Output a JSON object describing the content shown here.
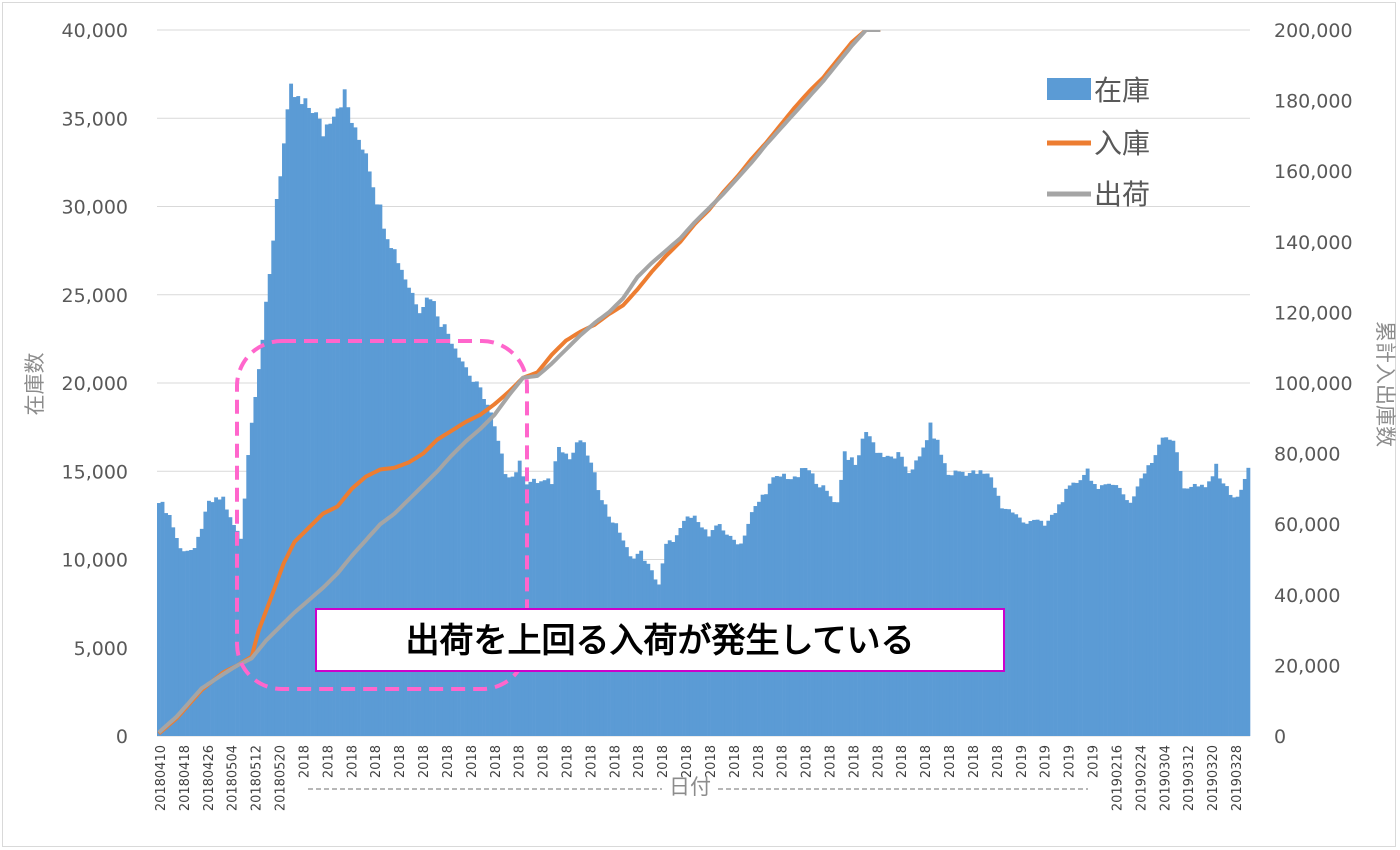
{
  "chart_data": {
    "type": "bar+line",
    "xlabel": "日付",
    "ylabel_left": "在庫数",
    "ylabel_right": "累計入出庫数",
    "ylim_left": [
      0,
      40000
    ],
    "ylim_right": [
      0,
      200000
    ],
    "yticks_left": [
      "0",
      "5,000",
      "10,000",
      "15,000",
      "20,000",
      "25,000",
      "30,000",
      "35,000",
      "40,000"
    ],
    "yticks_right": [
      "0",
      "20,000",
      "40,000",
      "60,000",
      "80,000",
      "100,000",
      "120,000",
      "140,000",
      "160,000",
      "180,000",
      "200,000"
    ],
    "x_tick_labels": [
      "20180410",
      "20180418",
      "20180426",
      "20180504",
      "20180512",
      "20180520",
      "2018",
      "2018",
      "2018",
      "2018",
      "2018",
      "2018",
      "2018",
      "2018",
      "2018",
      "2018",
      "2018",
      "2018",
      "2018",
      "2018",
      "2018",
      "2018",
      "2018",
      "2018",
      "2018",
      "2018",
      "2018",
      "2018",
      "2018",
      "2018",
      "2018",
      "2018",
      "2018",
      "2018",
      "2018",
      "2018",
      "2019",
      "2019",
      "2019",
      "2019",
      "20190216",
      "20190224",
      "20190304",
      "20190312",
      "20190320",
      "20190328"
    ],
    "grid": true,
    "legend_position": "top-right",
    "series": [
      {
        "name": "在庫",
        "kind": "bar",
        "axis": "left",
        "color": "#5b9bd5",
        "keypoints": [
          [
            0,
            13400
          ],
          [
            3,
            12500
          ],
          [
            6,
            10600
          ],
          [
            10,
            10500
          ],
          [
            14,
            13200
          ],
          [
            18,
            13500
          ],
          [
            20,
            12300
          ],
          [
            23,
            11200
          ],
          [
            25,
            16000
          ],
          [
            27,
            19500
          ],
          [
            29,
            22500
          ],
          [
            31,
            26000
          ],
          [
            33,
            30500
          ],
          [
            35,
            33500
          ],
          [
            37,
            36500
          ],
          [
            40,
            35700
          ],
          [
            43,
            35600
          ],
          [
            46,
            34200
          ],
          [
            49,
            35500
          ],
          [
            52,
            36300
          ],
          [
            55,
            34100
          ],
          [
            58,
            33200
          ],
          [
            61,
            30500
          ],
          [
            64,
            28500
          ],
          [
            67,
            27000
          ],
          [
            70,
            25500
          ],
          [
            73,
            24300
          ],
          [
            76,
            25000
          ],
          [
            79,
            23500
          ],
          [
            82,
            22500
          ],
          [
            85,
            21300
          ],
          [
            88,
            20100
          ],
          [
            91,
            19300
          ],
          [
            93,
            18200
          ],
          [
            95,
            16600
          ],
          [
            97,
            15000
          ],
          [
            99,
            14700
          ],
          [
            101,
            15400
          ],
          [
            103,
            14400
          ],
          [
            110,
            14400
          ],
          [
            112,
            16600
          ],
          [
            115,
            15700
          ],
          [
            118,
            16800
          ],
          [
            120,
            16000
          ],
          [
            123,
            14100
          ],
          [
            126,
            12500
          ],
          [
            129,
            11600
          ],
          [
            132,
            10100
          ],
          [
            135,
            10400
          ],
          [
            138,
            9300
          ],
          [
            140,
            8600
          ],
          [
            142,
            10800
          ],
          [
            145,
            11300
          ],
          [
            148,
            12400
          ],
          [
            151,
            12300
          ],
          [
            154,
            11300
          ],
          [
            157,
            12000
          ],
          [
            160,
            11200
          ],
          [
            163,
            10900
          ],
          [
            166,
            12600
          ],
          [
            169,
            13600
          ],
          [
            172,
            14500
          ],
          [
            175,
            14800
          ],
          [
            178,
            14500
          ],
          [
            181,
            15200
          ],
          [
            184,
            14500
          ],
          [
            187,
            13800
          ],
          [
            190,
            13200
          ],
          [
            192,
            16100
          ],
          [
            195,
            15300
          ],
          [
            198,
            17400
          ],
          [
            201,
            16200
          ],
          [
            204,
            15700
          ],
          [
            207,
            15900
          ],
          [
            210,
            15000
          ],
          [
            213,
            15700
          ],
          [
            216,
            17500
          ],
          [
            218,
            16600
          ],
          [
            221,
            14800
          ],
          [
            224,
            15000
          ],
          [
            227,
            14900
          ],
          [
            230,
            14900
          ],
          [
            233,
            14700
          ],
          [
            236,
            13000
          ],
          [
            239,
            12700
          ],
          [
            242,
            12100
          ],
          [
            245,
            12300
          ],
          [
            248,
            11900
          ],
          [
            251,
            12700
          ],
          [
            254,
            13800
          ],
          [
            257,
            14400
          ],
          [
            260,
            15100
          ],
          [
            263,
            13800
          ],
          [
            266,
            14500
          ],
          [
            269,
            14000
          ],
          [
            272,
            13200
          ],
          [
            275,
            14600
          ],
          [
            278,
            15500
          ],
          [
            281,
            17100
          ],
          [
            284,
            16800
          ],
          [
            287,
            14100
          ],
          [
            290,
            14200
          ],
          [
            293,
            14000
          ],
          [
            296,
            15200
          ],
          [
            299,
            14000
          ],
          [
            302,
            13400
          ],
          [
            305,
            15100
          ]
        ]
      },
      {
        "name": "入庫",
        "kind": "line",
        "axis": "right",
        "color": "#ed7d31",
        "keypoints": [
          [
            0,
            700
          ],
          [
            5,
            5000
          ],
          [
            12,
            13000
          ],
          [
            18,
            18000
          ],
          [
            22,
            20000
          ],
          [
            26,
            22500
          ],
          [
            28,
            30000
          ],
          [
            31,
            38000
          ],
          [
            35,
            49000
          ],
          [
            38,
            55000
          ],
          [
            42,
            59000
          ],
          [
            46,
            63000
          ],
          [
            50,
            65000
          ],
          [
            54,
            70000
          ],
          [
            58,
            73500
          ],
          [
            62,
            75500
          ],
          [
            66,
            76000
          ],
          [
            70,
            77500
          ],
          [
            74,
            80000
          ],
          [
            78,
            84000
          ],
          [
            82,
            86500
          ],
          [
            86,
            89000
          ],
          [
            90,
            91000
          ],
          [
            94,
            94000
          ],
          [
            98,
            97500
          ],
          [
            102,
            101500
          ],
          [
            106,
            103000
          ],
          [
            110,
            108000
          ],
          [
            114,
            112000
          ],
          [
            118,
            114500
          ],
          [
            122,
            116500
          ],
          [
            126,
            119500
          ],
          [
            130,
            122000
          ],
          [
            134,
            126500
          ],
          [
            138,
            131500
          ],
          [
            142,
            136000
          ],
          [
            146,
            140000
          ],
          [
            150,
            145000
          ],
          [
            154,
            149000
          ],
          [
            158,
            154000
          ],
          [
            162,
            158500
          ],
          [
            166,
            163500
          ],
          [
            170,
            168000
          ],
          [
            174,
            173000
          ],
          [
            178,
            178000
          ],
          [
            182,
            182500
          ],
          [
            186,
            186500
          ],
          [
            190,
            191500
          ],
          [
            194,
            196500
          ],
          [
            198,
            200000
          ],
          [
            202,
            206000
          ]
        ]
      },
      {
        "name": "出荷",
        "kind": "line",
        "axis": "right",
        "color": "#a5a5a5",
        "keypoints": [
          [
            0,
            1000
          ],
          [
            5,
            5500
          ],
          [
            12,
            13500
          ],
          [
            18,
            17500
          ],
          [
            22,
            20000
          ],
          [
            26,
            22000
          ],
          [
            30,
            27000
          ],
          [
            34,
            31000
          ],
          [
            38,
            35000
          ],
          [
            42,
            38500
          ],
          [
            46,
            42000
          ],
          [
            50,
            46000
          ],
          [
            54,
            51000
          ],
          [
            58,
            55500
          ],
          [
            62,
            60000
          ],
          [
            66,
            63000
          ],
          [
            70,
            67000
          ],
          [
            74,
            71000
          ],
          [
            78,
            75000
          ],
          [
            82,
            79500
          ],
          [
            86,
            83500
          ],
          [
            90,
            87000
          ],
          [
            94,
            91000
          ],
          [
            98,
            96500
          ],
          [
            102,
            101500
          ],
          [
            106,
            102000
          ],
          [
            110,
            105500
          ],
          [
            114,
            109500
          ],
          [
            118,
            113500
          ],
          [
            122,
            117000
          ],
          [
            126,
            120000
          ],
          [
            130,
            124000
          ],
          [
            134,
            130000
          ],
          [
            138,
            134000
          ],
          [
            142,
            137500
          ],
          [
            146,
            141000
          ],
          [
            150,
            145500
          ],
          [
            154,
            149500
          ],
          [
            158,
            153500
          ],
          [
            162,
            158000
          ],
          [
            166,
            162500
          ],
          [
            170,
            167500
          ],
          [
            174,
            172000
          ],
          [
            178,
            176500
          ],
          [
            182,
            181000
          ],
          [
            186,
            185500
          ],
          [
            190,
            190500
          ],
          [
            194,
            195500
          ],
          [
            198,
            200000
          ],
          [
            202,
            205000
          ]
        ]
      }
    ],
    "annotation": "出荷を上回る入荷が発生している"
  }
}
